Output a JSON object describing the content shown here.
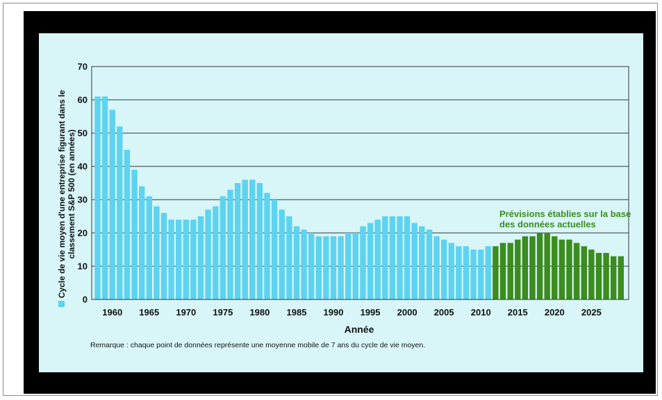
{
  "chart_data": {
    "type": "bar",
    "ylabel_lines": [
      "Cycle de vie moyen d'une entreprise figurant dans le",
      "classement S&P 500 (en années)"
    ],
    "xlabel": "Année",
    "note": "Remarque : chaque point de données représente une moyenne mobile de 7 ans du cycle de vie moyen.",
    "forecast_label_lines": [
      "Prévisions établies sur la base",
      "des données actuelles"
    ],
    "ylim": [
      0,
      70
    ],
    "yticks": [
      0,
      10,
      20,
      30,
      40,
      50,
      60,
      70
    ],
    "xticks": [
      1960,
      1965,
      1970,
      1975,
      1980,
      1985,
      1990,
      1995,
      2000,
      2005,
      2010,
      2015,
      2020,
      2025
    ],
    "grid": true,
    "series": [
      {
        "kind": "historical",
        "color": "#5ed3f0",
        "x": [
          1958,
          1959,
          1960,
          1961,
          1962,
          1963,
          1964,
          1965,
          1966,
          1967,
          1968,
          1969,
          1970,
          1971,
          1972,
          1973,
          1974,
          1975,
          1976,
          1977,
          1978,
          1979,
          1980,
          1981,
          1982,
          1983,
          1984,
          1985,
          1986,
          1987,
          1988,
          1989,
          1990,
          1991,
          1992,
          1993,
          1994,
          1995,
          1996,
          1997,
          1998,
          1999,
          2000,
          2001,
          2002,
          2003,
          2004,
          2005,
          2006,
          2007,
          2008,
          2009,
          2010,
          2011
        ],
        "values": [
          61,
          61,
          57,
          52,
          45,
          39,
          34,
          31,
          28,
          26,
          24,
          24,
          24,
          24,
          25,
          27,
          28,
          31,
          33,
          35,
          36,
          36,
          35,
          32,
          30,
          27,
          25,
          22,
          21,
          20,
          19,
          19,
          19,
          19,
          20,
          20,
          22,
          23,
          24,
          25,
          25,
          25,
          25,
          23,
          22,
          21,
          19,
          18,
          17,
          16,
          16,
          15,
          15,
          16
        ]
      },
      {
        "kind": "forecast",
        "color": "#3c8c1e",
        "x": [
          2012,
          2013,
          2014,
          2015,
          2016,
          2017,
          2018,
          2019,
          2020,
          2021,
          2022,
          2023,
          2024,
          2025,
          2026,
          2027,
          2028,
          2029
        ],
        "values": [
          16,
          17,
          17,
          18,
          19,
          19,
          20,
          20,
          19,
          18,
          18,
          17,
          16,
          15,
          14,
          14,
          13,
          13
        ]
      }
    ],
    "legend_marker_color": "#5ed3f0"
  }
}
